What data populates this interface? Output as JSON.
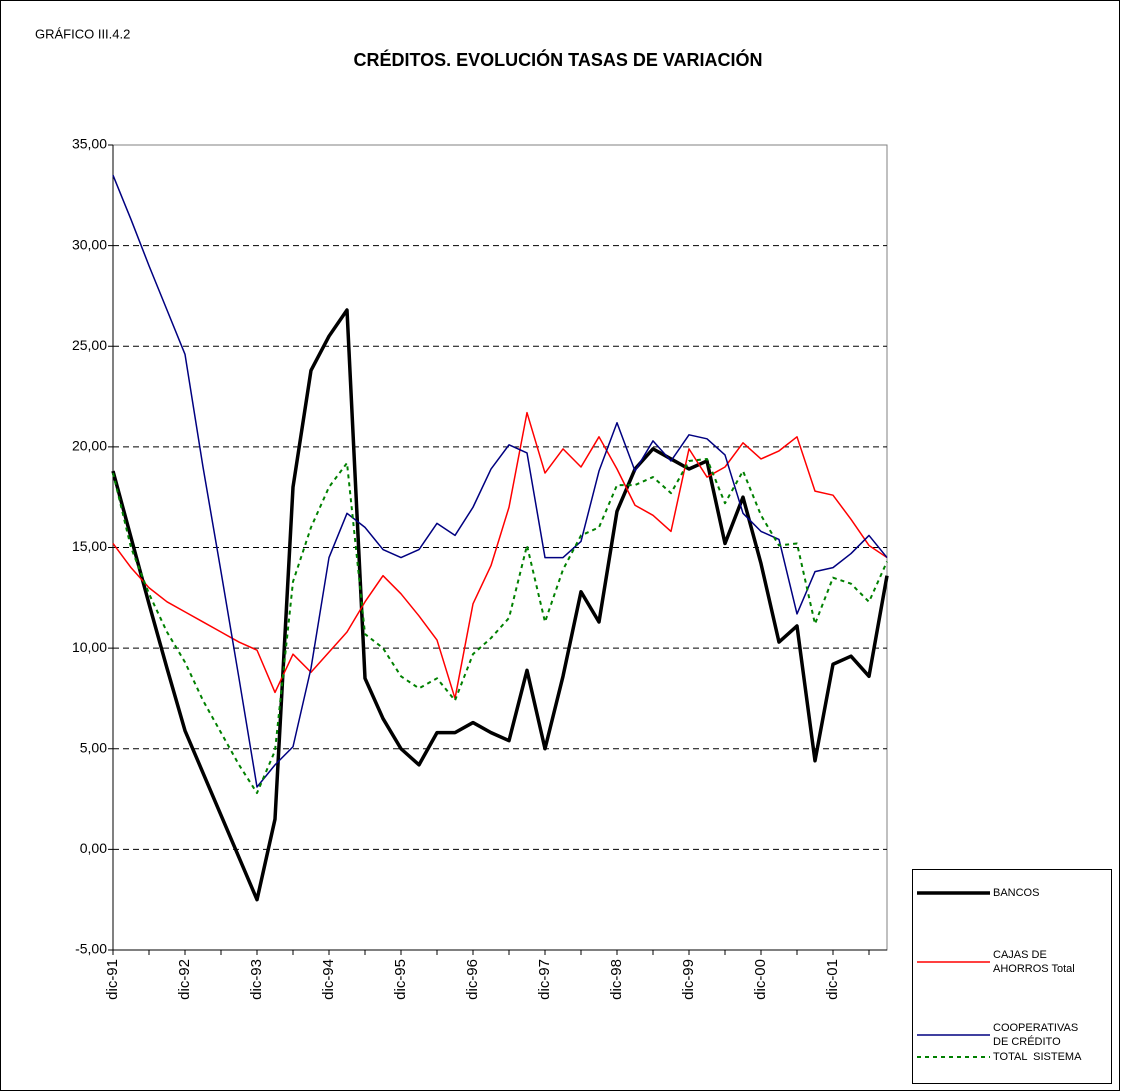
{
  "chart_data": {
    "type": "line",
    "label": "GRÁFICO III.4.2",
    "title": "CRÉDITOS. EVOLUCIÓN TASAS DE VARIACIÓN",
    "categories": [
      "dic-91",
      null,
      null,
      null,
      "dic-92",
      null,
      null,
      null,
      "dic-93",
      null,
      null,
      null,
      "dic-94",
      null,
      null,
      null,
      "dic-95",
      null,
      null,
      null,
      "dic-96",
      null,
      null,
      null,
      "dic-97",
      null,
      null,
      null,
      "dic-98",
      null,
      null,
      null,
      "dic-99",
      null,
      null,
      null,
      "dic-00",
      null,
      null,
      null,
      "dic-01",
      null,
      null,
      null
    ],
    "ylim": [
      -5,
      35
    ],
    "yticks": [
      {
        "value": -5,
        "label": "-5,00"
      },
      {
        "value": 0,
        "label": "0,00"
      },
      {
        "value": 5,
        "label": "5,00"
      },
      {
        "value": 10,
        "label": "10,00"
      },
      {
        "value": 15,
        "label": "15,00"
      },
      {
        "value": 20,
        "label": "20,00"
      },
      {
        "value": 25,
        "label": "25,00"
      },
      {
        "value": 30,
        "label": "30,00"
      },
      {
        "value": 35,
        "label": "35,00"
      }
    ],
    "grid": true,
    "legend": "lower right",
    "series": [
      {
        "name": "BANCOS",
        "color": "#000000",
        "width": 3.5,
        "dashed": false,
        "values": [
          18.8,
          15.5,
          12.2,
          9.0,
          5.9,
          3.8,
          1.7,
          -0.4,
          -2.5,
          1.5,
          18.0,
          23.8,
          25.5,
          26.8,
          8.5,
          6.5,
          5.0,
          4.2,
          5.8,
          5.8,
          6.3,
          5.8,
          5.4,
          8.9,
          5.0,
          8.6,
          12.8,
          11.3,
          16.8,
          18.9,
          19.9,
          19.4,
          18.9,
          19.3,
          15.2,
          17.5,
          14.2,
          10.3,
          11.1,
          4.4,
          9.2,
          9.6,
          8.6,
          13.6
        ]
      },
      {
        "name": "CAJAS DE AHORROS Total",
        "color": "#ff0000",
        "width": 1.5,
        "dashed": false,
        "values": [
          15.2,
          14.0,
          13.0,
          12.3,
          11.8,
          11.3,
          10.8,
          10.3,
          9.9,
          7.8,
          9.7,
          8.8,
          9.8,
          10.8,
          12.3,
          13.6,
          12.7,
          11.6,
          10.4,
          7.5,
          12.2,
          14.1,
          17.0,
          21.7,
          18.7,
          19.9,
          19.0,
          20.5,
          18.9,
          17.1,
          16.6,
          15.8,
          19.9,
          18.5,
          19.0,
          20.2,
          19.4,
          19.8,
          20.5,
          17.8,
          17.6,
          16.4,
          15.1,
          14.5
        ]
      },
      {
        "name": "COOPERATIVAS DE CRÉDITO",
        "color": "#000080",
        "width": 1.5,
        "dashed": false,
        "values": [
          33.5,
          31.3,
          29.0,
          26.8,
          24.6,
          19.0,
          13.8,
          8.5,
          3.1,
          4.2,
          5.1,
          9.0,
          14.5,
          16.7,
          16.0,
          14.9,
          14.5,
          14.9,
          16.2,
          15.6,
          17.0,
          18.9,
          20.1,
          19.7,
          14.5,
          14.5,
          15.3,
          18.8,
          21.2,
          18.8,
          20.3,
          19.3,
          20.6,
          20.4,
          19.6,
          16.7,
          15.8,
          15.4,
          11.7,
          13.8,
          14.0,
          14.7,
          15.6,
          14.5
        ]
      },
      {
        "name": "TOTAL  SISTEMA",
        "color": "#008000",
        "width": 2,
        "dashed": true,
        "values": [
          18.7,
          15.0,
          12.7,
          10.8,
          9.3,
          7.4,
          5.8,
          4.2,
          2.8,
          4.9,
          13.3,
          16.0,
          18.0,
          19.2,
          10.7,
          10.0,
          8.6,
          8.0,
          8.5,
          7.4,
          9.7,
          10.5,
          11.5,
          15.1,
          11.3,
          13.9,
          15.6,
          16.0,
          18.1,
          18.1,
          18.5,
          17.7,
          19.3,
          19.4,
          17.2,
          18.8,
          16.6,
          15.1,
          15.2,
          11.2,
          13.5,
          13.2,
          12.3,
          14.3
        ]
      }
    ]
  }
}
